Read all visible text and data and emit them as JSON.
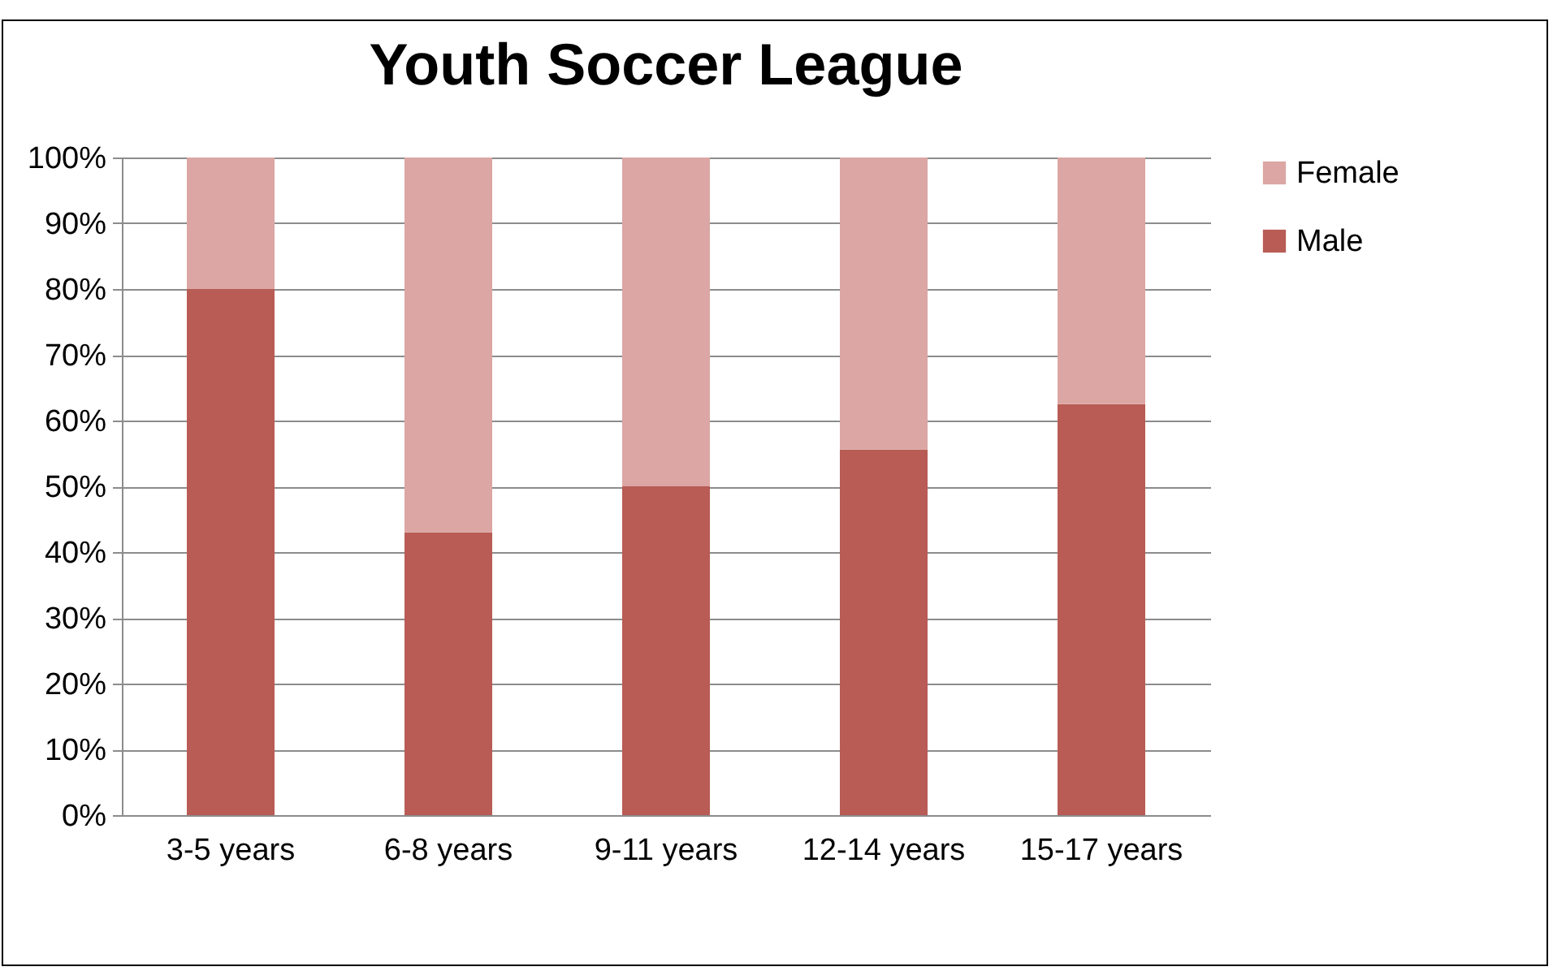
{
  "chart_data": {
    "type": "bar",
    "title": "Youth Soccer League",
    "stacked": true,
    "categories": [
      "3-5 years",
      "6-8 years",
      "9-11 years",
      "12-14 years",
      "15-17 years"
    ],
    "series": [
      {
        "name": "Male",
        "color": "#b85c55",
        "values": [
          80,
          43,
          50,
          55.6,
          62.5
        ]
      },
      {
        "name": "Female",
        "color": "#dba6a3",
        "values": [
          20,
          57,
          50,
          44.4,
          37.5
        ]
      }
    ],
    "ylim": [
      0,
      100
    ],
    "yticks": [
      {
        "value": 0,
        "label": "0%"
      },
      {
        "value": 10,
        "label": "10%"
      },
      {
        "value": 20,
        "label": "20%"
      },
      {
        "value": 30,
        "label": "30%"
      },
      {
        "value": 40,
        "label": "40%"
      },
      {
        "value": 50,
        "label": "50%"
      },
      {
        "value": 60,
        "label": "60%"
      },
      {
        "value": 70,
        "label": "70%"
      },
      {
        "value": 80,
        "label": "80%"
      },
      {
        "value": 90,
        "label": "90%"
      },
      {
        "value": 100,
        "label": "100%"
      }
    ],
    "grid": "y",
    "legend": "right"
  }
}
